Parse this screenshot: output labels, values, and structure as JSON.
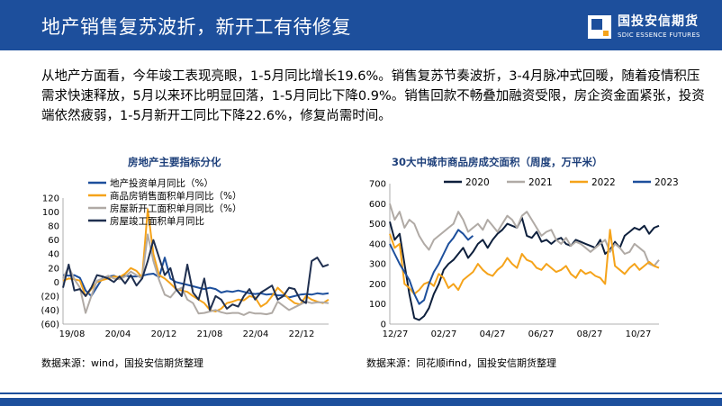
{
  "header": {
    "title": "地产销售复苏波折，新开工有待修复",
    "logo_cn": "国投安信期货",
    "logo_en": "SDIC ESSENCE FUTURES",
    "colors": {
      "primary": "#1d4f9c",
      "accent": "#f5a31a"
    }
  },
  "summary": "从地产方面看，今年竣工表现亮眼，1-5月同比增长19.6%。销售复苏节奏波折，3-4月脉冲式回暖，随着疫情积压需求快速释放，5月以来环比明显回落，1-5月同比下降0.9%。销售回款不畅叠加融资受限，房企资金面紧张，投资端依然疲弱，1-5月新开工同比下降22.6%，修复尚需时间。",
  "sources": {
    "left": "数据来源：wind，国投安信期货整理",
    "right": "数据来源：同花顺ifind，国投安信期货整理"
  },
  "chart_data": [
    {
      "type": "line",
      "title": "房地产主要指标分化",
      "x_ticks": [
        "19/08",
        "20/04",
        "20/12",
        "21/08",
        "22/04",
        "22/12"
      ],
      "y_ticks": [
        "120",
        "100",
        "80",
        "60",
        "40",
        "20",
        "0",
        "(20)",
        "(40)",
        "(60)"
      ],
      "ylim": [
        -60,
        120
      ],
      "legend_position": "top-left",
      "series": [
        {
          "name": "地产投资单月同比（%）",
          "color": "#1d4f9c",
          "values": [
            10,
            9,
            10,
            6,
            -12,
            -20,
            -7,
            6,
            8,
            9,
            6,
            9,
            8,
            8,
            9,
            11,
            12,
            7,
            35,
            5,
            0,
            -2,
            -4,
            -6,
            -8,
            -10,
            -8,
            -10,
            -15,
            -13,
            -14,
            -12,
            -14,
            -16,
            -17,
            -16,
            -18,
            -17,
            -19,
            -19,
            -22,
            -20,
            -18,
            -17,
            -18,
            -16,
            -17,
            -16
          ]
        },
        {
          "name": "商品房销售面积单月同比（%）",
          "color": "#f5a31a",
          "values": [
            2,
            5,
            4,
            2,
            -20,
            -10,
            0,
            3,
            5,
            8,
            7,
            12,
            20,
            16,
            7,
            104,
            40,
            10,
            5,
            -2,
            -10,
            -12,
            -14,
            -20,
            -25,
            -30,
            -40,
            -42,
            -38,
            -30,
            -28,
            -25,
            -26,
            -20,
            -22,
            -35,
            -30,
            -20,
            -8,
            -16,
            -24,
            -30,
            -32,
            -20,
            -25,
            -28,
            -30,
            -25
          ]
        },
        {
          "name": "房屋新开工面积单月同比（%）",
          "color": "#b0aaa5",
          "values": [
            5,
            22,
            4,
            -8,
            -44,
            -20,
            2,
            5,
            9,
            5,
            4,
            8,
            15,
            10,
            5,
            68,
            30,
            3,
            -18,
            -22,
            -12,
            -8,
            -25,
            -30,
            -45,
            -44,
            -42,
            -40,
            -43,
            -45,
            -44,
            -44,
            -47,
            -43,
            -45,
            -45,
            -46,
            -44,
            -28,
            -34,
            -40,
            -36,
            -32,
            -28,
            -30,
            -29,
            -29,
            -30
          ]
        },
        {
          "name": "房屋竣工面积单月同比",
          "color": "#1f2f4f",
          "values": [
            -8,
            25,
            -12,
            -10,
            -20,
            -8,
            10,
            8,
            5,
            0,
            8,
            -2,
            10,
            -5,
            5,
            30,
            60,
            35,
            10,
            20,
            -10,
            -20,
            25,
            -15,
            -25,
            5,
            -40,
            -20,
            -25,
            -38,
            -32,
            -35,
            -20,
            -10,
            -25,
            -15,
            -10,
            -5,
            -25,
            -20,
            -8,
            -10,
            -25,
            -30,
            30,
            35,
            22,
            25
          ]
        }
      ]
    },
    {
      "type": "line",
      "title": "30大中城市商品房成交面积（周度，万平米）",
      "x_ticks": [
        "12/27",
        "02/27",
        "04/27",
        "06/27",
        "08/27",
        "10/27"
      ],
      "y_ticks": [
        "700",
        "600",
        "500",
        "400",
        "300",
        "200",
        "100",
        "0"
      ],
      "ylim": [
        0,
        700
      ],
      "legend_position": "top",
      "series": [
        {
          "name": "2020",
          "color": "#0d1f3c",
          "values": [
            510,
            420,
            450,
            300,
            150,
            30,
            20,
            40,
            80,
            150,
            200,
            270,
            300,
            320,
            350,
            380,
            330,
            360,
            400,
            420,
            380,
            420,
            450,
            470,
            500,
            490,
            480,
            530,
            440,
            430,
            460,
            410,
            420,
            400,
            420,
            430,
            400,
            390,
            420,
            410,
            400,
            390,
            380,
            420,
            350,
            370,
            410,
            380,
            440,
            460,
            480,
            470,
            490,
            450,
            480,
            490
          ]
        },
        {
          "name": "2021",
          "color": "#b0aaa5",
          "values": [
            600,
            520,
            560,
            480,
            520,
            500,
            440,
            400,
            370,
            420,
            440,
            460,
            480,
            500,
            560,
            520,
            460,
            480,
            500,
            470,
            520,
            490,
            460,
            500,
            540,
            520,
            480,
            540,
            560,
            520,
            480,
            440,
            460,
            470,
            420,
            400,
            430,
            390,
            410,
            400,
            380,
            360,
            380,
            400,
            420,
            360,
            400,
            380,
            350,
            360,
            400,
            380,
            360,
            300,
            290,
            320
          ]
        },
        {
          "name": "2022",
          "color": "#f5a31a",
          "values": [
            450,
            380,
            400,
            200,
            180,
            150,
            170,
            200,
            210,
            190,
            250,
            230,
            180,
            200,
            170,
            220,
            240,
            260,
            300,
            270,
            250,
            240,
            270,
            290,
            330,
            300,
            280,
            350,
            320,
            310,
            280,
            270,
            300,
            280,
            260,
            270,
            290,
            250,
            230,
            270,
            250,
            260,
            240,
            230,
            200,
            470,
            290,
            270,
            250,
            280,
            300,
            270,
            290,
            310,
            290,
            280
          ]
        },
        {
          "name": "2023",
          "color": "#1d4f9c",
          "values": [
            400,
            350,
            300,
            260,
            220,
            150,
            100,
            120,
            200,
            260,
            300,
            350,
            400,
            430,
            470,
            450,
            420,
            440
          ]
        }
      ]
    }
  ]
}
